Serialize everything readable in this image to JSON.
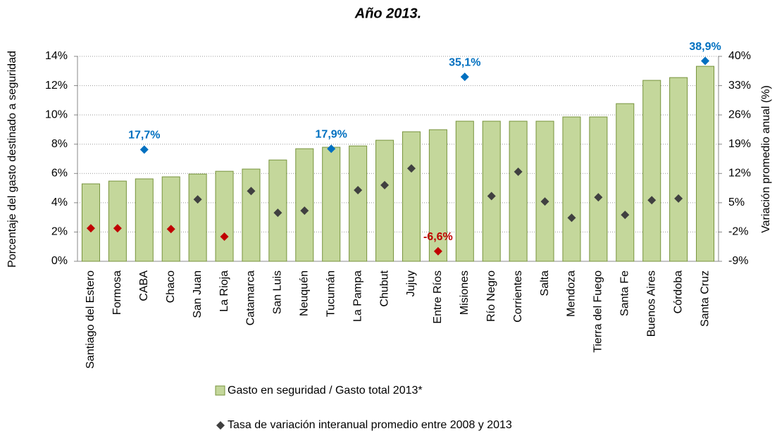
{
  "chart_data": {
    "type": "bar",
    "title": "Año 2013.",
    "ylabel": "Porcentaje del gasto destinado a seguridad",
    "y2label": "Variación promedio anual (%)",
    "categories": [
      "Santiago del Estero",
      "Formosa",
      "CABA",
      "Chaco",
      "San Juan",
      "La Rioja",
      "Catamarca",
      "San Luis",
      "Neuquén",
      "Tucumán",
      "La Pampa",
      "Chubut",
      "Jujuy",
      "Entre Ríos",
      "Misiones",
      "Río Negro",
      "Corrientes",
      "Salta",
      "Mendoza",
      "Tierra del Fuego",
      "Santa Fe",
      "Buenos Aires",
      "Córdoba",
      "Santa Cruz"
    ],
    "series": [
      {
        "name": "Gasto en seguridad / Gasto total  2013*",
        "type": "bar",
        "color": "#c4d79b",
        "edge": "#77933c",
        "axis": "y",
        "values": [
          5.29,
          5.48,
          5.63,
          5.77,
          5.96,
          6.15,
          6.3,
          6.92,
          7.69,
          7.79,
          7.88,
          8.27,
          8.85,
          8.99,
          9.57,
          9.57,
          9.57,
          9.57,
          9.86,
          9.86,
          10.77,
          12.36,
          12.55,
          13.32
        ]
      },
      {
        "name": "Tasa de variación interanual promedio entre 2008 y 2013",
        "type": "scatter",
        "color": "#404040",
        "axis": "y2",
        "values": [
          -1.1,
          -1.1,
          17.7,
          -1.3,
          5.8,
          -3.1,
          7.8,
          2.6,
          3.1,
          17.9,
          8.0,
          9.2,
          13.2,
          -6.6,
          35.1,
          6.6,
          12.4,
          5.3,
          1.4,
          6.3,
          2.1,
          5.6,
          6.0,
          38.9
        ],
        "colors": [
          "#c00000",
          "#c00000",
          "#0070c0",
          "#c00000",
          "#404040",
          "#c00000",
          "#404040",
          "#404040",
          "#404040",
          "#0070c0",
          "#404040",
          "#404040",
          "#404040",
          "#c00000",
          "#0070c0",
          "#404040",
          "#404040",
          "#404040",
          "#404040",
          "#404040",
          "#404040",
          "#404040",
          "#404040",
          "#0070c0"
        ],
        "value_labels": [
          null,
          null,
          "17,7%",
          null,
          null,
          null,
          null,
          null,
          null,
          "17,9%",
          null,
          null,
          null,
          "-6,6%",
          "35,1%",
          null,
          null,
          null,
          null,
          null,
          null,
          null,
          null,
          "38,9%"
        ]
      }
    ],
    "ylim": [
      0,
      14
    ],
    "yticks": [
      {
        "value": 0,
        "label": "0%"
      },
      {
        "value": 2,
        "label": "2%"
      },
      {
        "value": 4,
        "label": "4%"
      },
      {
        "value": 6,
        "label": "6%"
      },
      {
        "value": 8,
        "label": "8%"
      },
      {
        "value": 10,
        "label": "10%"
      },
      {
        "value": 12,
        "label": "12%"
      },
      {
        "value": 14,
        "label": "14%"
      }
    ],
    "y2lim": [
      -9,
      40
    ],
    "y2ticks": [
      {
        "value": -9,
        "label": "-9%"
      },
      {
        "value": -2,
        "label": "-2%"
      },
      {
        "value": 5,
        "label": "5%"
      },
      {
        "value": 12,
        "label": "12%"
      },
      {
        "value": 19,
        "label": "19%"
      },
      {
        "value": 26,
        "label": "26%"
      },
      {
        "value": 33,
        "label": "33%"
      },
      {
        "value": 40,
        "label": "40%"
      }
    ],
    "grid": true
  }
}
